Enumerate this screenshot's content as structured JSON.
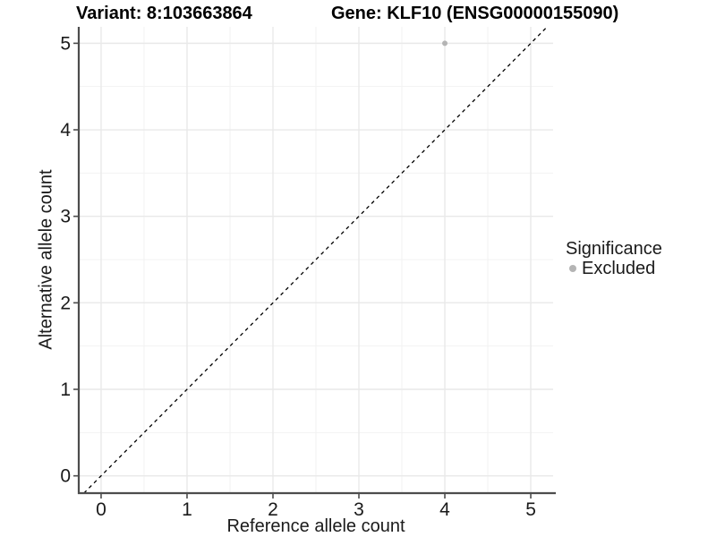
{
  "chart_data": {
    "type": "scatter",
    "title_left": "Variant: 8:103663864",
    "title_right": "Gene: KLF10 (ENSG00000155090)",
    "xlabel": "Reference allele count",
    "ylabel": "Alternative allele count",
    "xlim": [
      -0.26,
      5.26
    ],
    "ylim": [
      -0.2,
      5.19
    ],
    "x_ticks": [
      0,
      1,
      2,
      3,
      4,
      5
    ],
    "y_ticks": [
      0,
      1,
      2,
      3,
      4,
      5
    ],
    "minor_grid_step": 0.5,
    "grid": "major+minor",
    "points": [
      {
        "x": 4,
        "y": 5,
        "series": "Excluded"
      }
    ],
    "reference_line": {
      "slope": 1,
      "intercept": 0,
      "style": "dashed",
      "color": "#000000"
    },
    "legend": {
      "title": "Significance",
      "position": "right",
      "items": [
        {
          "label": "Excluded",
          "color": "#b4b4b4"
        }
      ]
    },
    "colors": {
      "point": "#b4b4b4",
      "grid_major": "#e9e9e9",
      "grid_minor": "#f1f1f1",
      "axis": "#4d4d4d",
      "tick_text": "#1a1a1a",
      "background": "#ffffff"
    }
  }
}
